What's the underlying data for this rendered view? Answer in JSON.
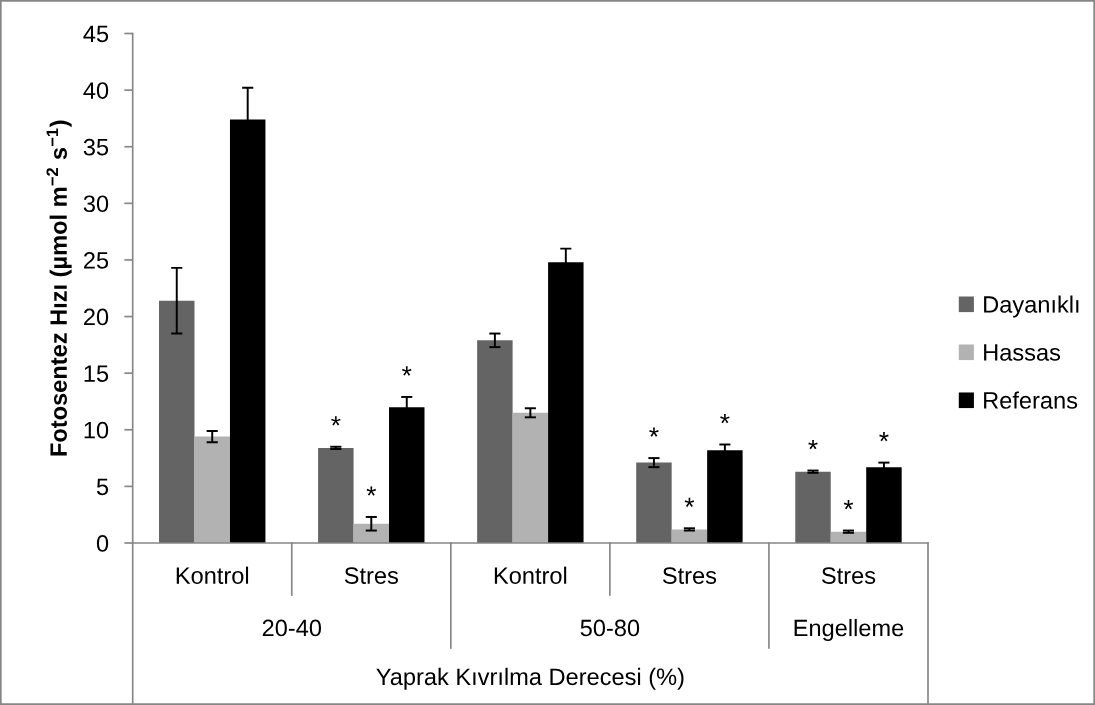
{
  "chart_data": {
    "type": "bar",
    "categories": [
      "Kontrol",
      "Stres",
      "Kontrol",
      "Stres",
      "Stres"
    ],
    "xlabel": "Yaprak Kıvrılma Derecesi (%)",
    "ylabel": "Fotosentez Hızı (µmol m$^{−2}$ s$^{−1}$)",
    "annotations": [
      "20-40",
      "50-80",
      "Engelleme"
    ],
    "series": [
      {
        "name": "Dayanıklı",
        "color": "#646464",
        "values": [
          21.4,
          8.4,
          17.9,
          7.1,
          6.3
        ],
        "errors": [
          2.9,
          0.1,
          0.6,
          0.4,
          0.1
        ],
        "value_labels": [
          null,
          "*",
          null,
          "*",
          "*"
        ]
      },
      {
        "name": "Hassas",
        "color": "#b2b2b2",
        "values": [
          9.4,
          1.7,
          11.5,
          1.2,
          1.0
        ],
        "errors": [
          0.5,
          0.6,
          0.4,
          0.1,
          0.1
        ],
        "value_labels": [
          null,
          "*",
          null,
          "*",
          "*"
        ]
      },
      {
        "name": "Referans",
        "color": "#000000",
        "values": [
          37.4,
          12.0,
          24.8,
          8.2,
          6.7
        ],
        "errors": [
          2.8,
          0.9,
          1.2,
          0.5,
          0.4
        ],
        "value_labels": [
          null,
          "*",
          null,
          "*",
          "*"
        ]
      }
    ],
    "ylim": [
      0,
      45
    ],
    "yticks": [
      0,
      5,
      10,
      15,
      20,
      25,
      30,
      35,
      40,
      45
    ],
    "legend": "right"
  }
}
